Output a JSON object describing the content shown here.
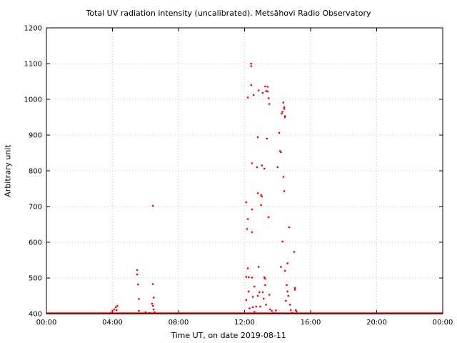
{
  "chart_data": {
    "type": "scatter",
    "title": "Total UV radiation intensity (uncalibrated). Metsähovi Radio Observatory",
    "xlabel": "Time UT, on date 2019-08-11",
    "ylabel": "Arbitrary unit",
    "xlim": [
      "00:00",
      "24:00"
    ],
    "ylim": [
      400,
      1200
    ],
    "xticks": [
      "00:00",
      "04:00",
      "08:00",
      "12:00",
      "16:00",
      "20:00",
      "00:00"
    ],
    "yticks": [
      400,
      500,
      600,
      700,
      800,
      900,
      1000,
      1100,
      1200
    ],
    "grid": true,
    "marker_color": "#ff0000",
    "baseline": {
      "y": 400,
      "x_start": "00:00",
      "x_end": "24:00"
    },
    "points": [
      {
        "x": "03:54",
        "y": 402
      },
      {
        "x": "04:00",
        "y": 408
      },
      {
        "x": "04:06",
        "y": 412
      },
      {
        "x": "04:12",
        "y": 418
      },
      {
        "x": "04:15",
        "y": 410
      },
      {
        "x": "04:18",
        "y": 422
      },
      {
        "x": "05:30",
        "y": 522
      },
      {
        "x": "05:30",
        "y": 510
      },
      {
        "x": "05:33",
        "y": 482
      },
      {
        "x": "05:36",
        "y": 441
      },
      {
        "x": "05:36",
        "y": 408
      },
      {
        "x": "06:00",
        "y": 404
      },
      {
        "x": "06:15",
        "y": 402
      },
      {
        "x": "06:27",
        "y": 702
      },
      {
        "x": "06:27",
        "y": 483
      },
      {
        "x": "06:30",
        "y": 445
      },
      {
        "x": "06:24",
        "y": 428
      },
      {
        "x": "06:27",
        "y": 422
      },
      {
        "x": "06:30",
        "y": 412
      },
      {
        "x": "06:33",
        "y": 404
      },
      {
        "x": "12:06",
        "y": 712
      },
      {
        "x": "12:06",
        "y": 503
      },
      {
        "x": "12:06",
        "y": 438
      },
      {
        "x": "12:09",
        "y": 637
      },
      {
        "x": "12:12",
        "y": 1005
      },
      {
        "x": "12:12",
        "y": 665
      },
      {
        "x": "12:12",
        "y": 527
      },
      {
        "x": "12:15",
        "y": 502
      },
      {
        "x": "12:15",
        "y": 462
      },
      {
        "x": "12:18",
        "y": 415
      },
      {
        "x": "12:24",
        "y": 1100
      },
      {
        "x": "12:24",
        "y": 1093
      },
      {
        "x": "12:24",
        "y": 1040
      },
      {
        "x": "12:27",
        "y": 821
      },
      {
        "x": "12:27",
        "y": 692
      },
      {
        "x": "12:27",
        "y": 628
      },
      {
        "x": "12:27",
        "y": 501
      },
      {
        "x": "12:30",
        "y": 447
      },
      {
        "x": "12:30",
        "y": 418
      },
      {
        "x": "12:33",
        "y": 1012
      },
      {
        "x": "12:36",
        "y": 476
      },
      {
        "x": "12:36",
        "y": 405
      },
      {
        "x": "12:42",
        "y": 420
      },
      {
        "x": "12:45",
        "y": 810
      },
      {
        "x": "12:48",
        "y": 894
      },
      {
        "x": "12:48",
        "y": 737
      },
      {
        "x": "12:48",
        "y": 450
      },
      {
        "x": "12:51",
        "y": 1025
      },
      {
        "x": "12:51",
        "y": 531
      },
      {
        "x": "12:54",
        "y": 460
      },
      {
        "x": "12:57",
        "y": 420
      },
      {
        "x": "13:00",
        "y": 732
      },
      {
        "x": "13:00",
        "y": 704
      },
      {
        "x": "13:03",
        "y": 815
      },
      {
        "x": "13:03",
        "y": 728
      },
      {
        "x": "13:06",
        "y": 1018
      },
      {
        "x": "13:06",
        "y": 460
      },
      {
        "x": "13:09",
        "y": 442
      },
      {
        "x": "13:12",
        "y": 806
      },
      {
        "x": "13:12",
        "y": 502
      },
      {
        "x": "13:15",
        "y": 1036
      },
      {
        "x": "13:15",
        "y": 498
      },
      {
        "x": "13:15",
        "y": 480
      },
      {
        "x": "13:18",
        "y": 1023
      },
      {
        "x": "13:18",
        "y": 425
      },
      {
        "x": "13:21",
        "y": 890
      },
      {
        "x": "13:24",
        "y": 1035
      },
      {
        "x": "13:24",
        "y": 1022
      },
      {
        "x": "13:27",
        "y": 1003
      },
      {
        "x": "13:27",
        "y": 670
      },
      {
        "x": "13:30",
        "y": 987
      },
      {
        "x": "13:30",
        "y": 453
      },
      {
        "x": "13:33",
        "y": 412
      },
      {
        "x": "13:39",
        "y": 408
      },
      {
        "x": "13:45",
        "y": 402
      },
      {
        "x": "13:54",
        "y": 409
      },
      {
        "x": "14:00",
        "y": 810
      },
      {
        "x": "14:06",
        "y": 906
      },
      {
        "x": "14:09",
        "y": 855
      },
      {
        "x": "14:12",
        "y": 852
      },
      {
        "x": "14:12",
        "y": 531
      },
      {
        "x": "14:15",
        "y": 960
      },
      {
        "x": "14:18",
        "y": 965
      },
      {
        "x": "14:18",
        "y": 602
      },
      {
        "x": "14:21",
        "y": 991
      },
      {
        "x": "14:21",
        "y": 783
      },
      {
        "x": "14:24",
        "y": 978
      },
      {
        "x": "14:24",
        "y": 973
      },
      {
        "x": "14:24",
        "y": 743
      },
      {
        "x": "14:27",
        "y": 953
      },
      {
        "x": "14:27",
        "y": 950
      },
      {
        "x": "14:27",
        "y": 520
      },
      {
        "x": "14:30",
        "y": 436
      },
      {
        "x": "14:33",
        "y": 480
      },
      {
        "x": "14:36",
        "y": 541
      },
      {
        "x": "14:36",
        "y": 462
      },
      {
        "x": "14:39",
        "y": 450
      },
      {
        "x": "14:42",
        "y": 642
      },
      {
        "x": "14:45",
        "y": 425
      },
      {
        "x": "14:48",
        "y": 410
      },
      {
        "x": "14:54",
        "y": 402
      },
      {
        "x": "15:00",
        "y": 573
      },
      {
        "x": "15:03",
        "y": 472
      },
      {
        "x": "15:03",
        "y": 467
      },
      {
        "x": "15:06",
        "y": 410
      },
      {
        "x": "15:09",
        "y": 406
      }
    ]
  }
}
